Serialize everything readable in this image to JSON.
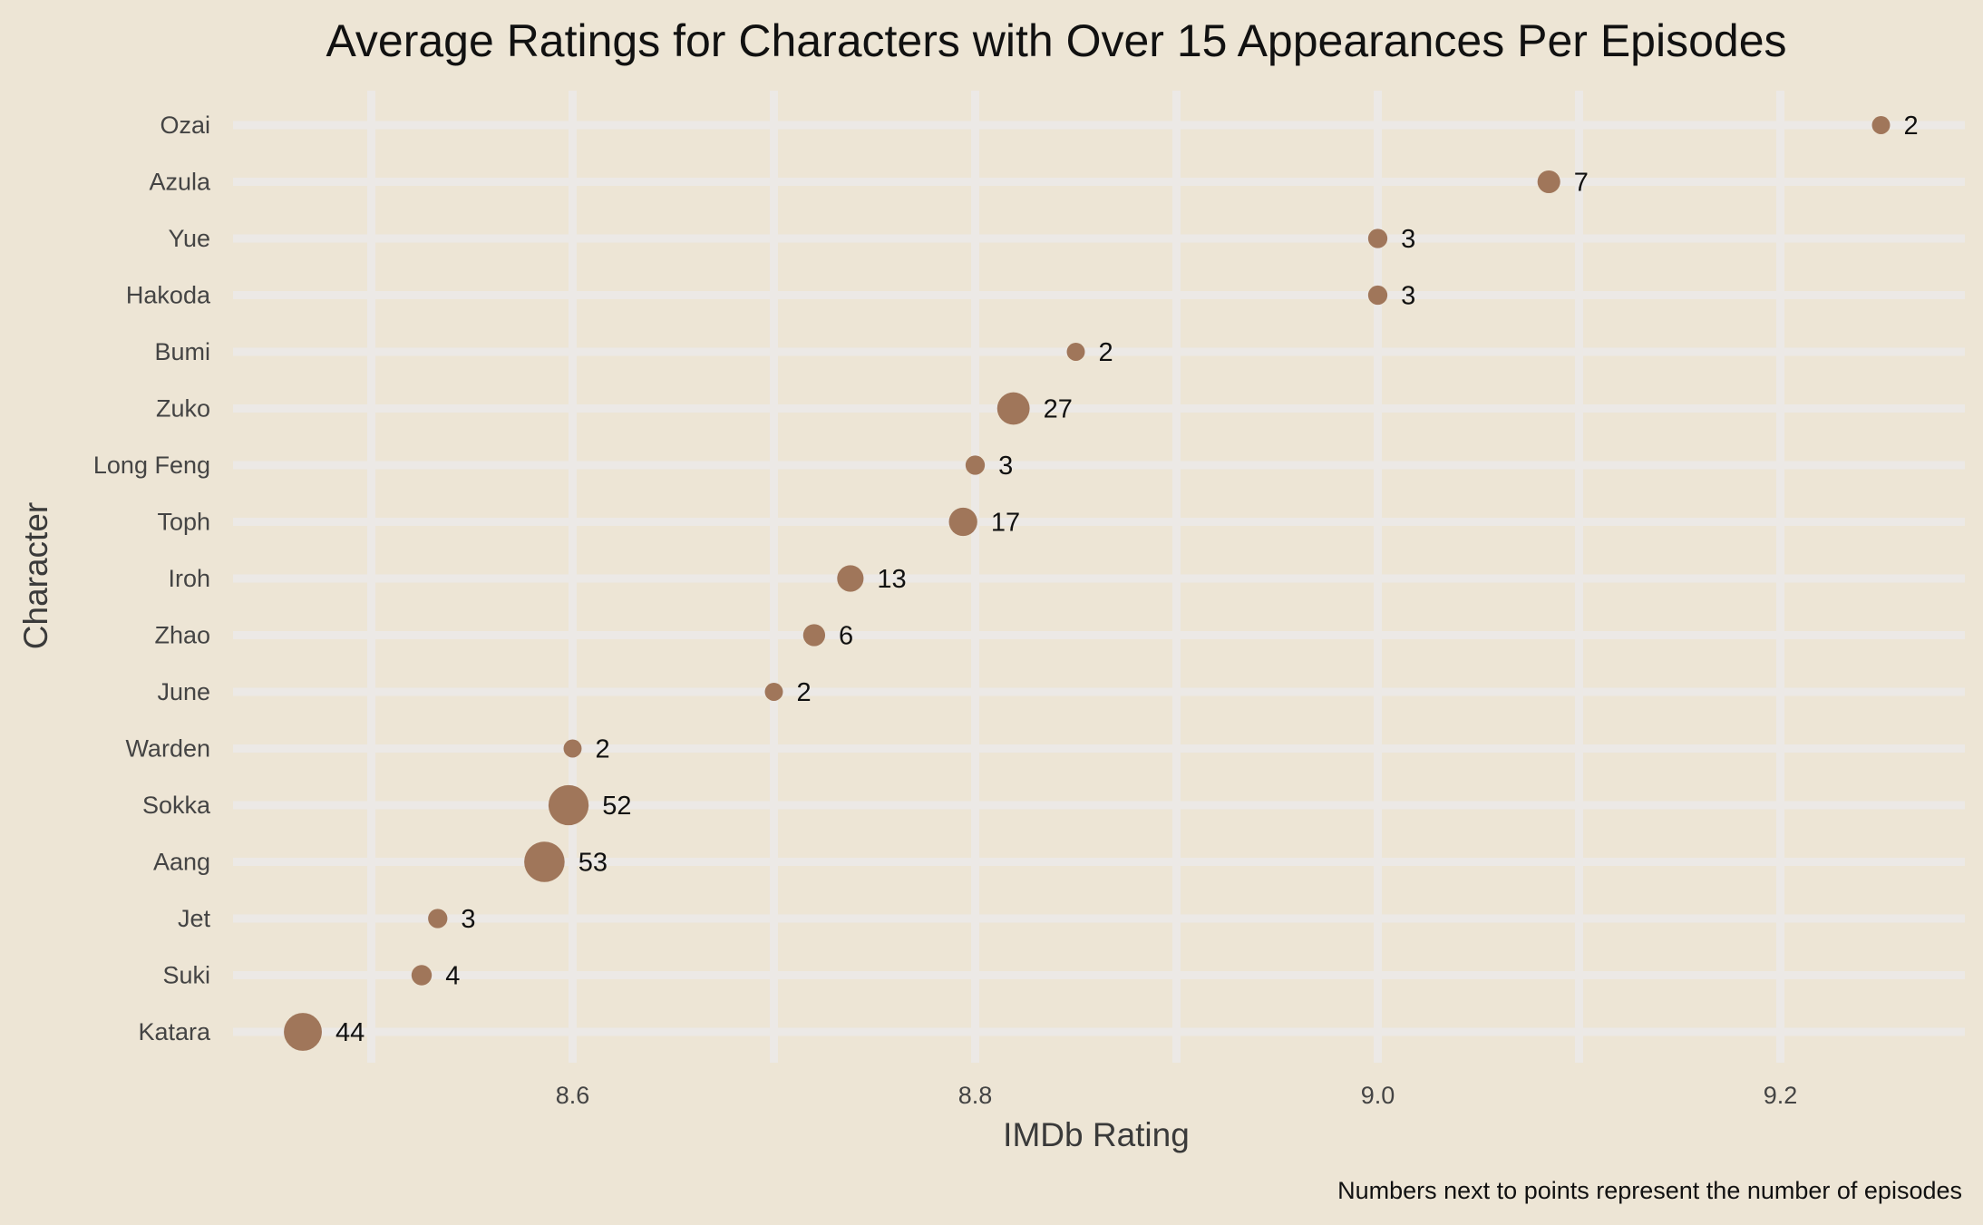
{
  "chart_data": {
    "type": "scatter",
    "title": "Average Ratings for Characters with Over 15 Appearances Per Episodes",
    "xlabel": "IMDb Rating",
    "ylabel": "Character",
    "caption": "Numbers next to points represent the number of episodes",
    "xlim": [
      8.43,
      9.29
    ],
    "x_ticks": [
      8.6,
      8.8,
      9.0,
      9.2
    ],
    "x_tick_labels": [
      "8.6",
      "8.8",
      "9.0",
      "9.2"
    ],
    "grid": true,
    "legend": "none",
    "colors": {
      "point": "#a0765a",
      "background": "#ede5d5",
      "grid": "#ece9e6"
    },
    "points": [
      {
        "character": "Ozai",
        "rating": 9.25,
        "episodes": 2
      },
      {
        "character": "Azula",
        "rating": 9.085,
        "episodes": 7
      },
      {
        "character": "Yue",
        "rating": 9.0,
        "episodes": 3
      },
      {
        "character": "Hakoda",
        "rating": 9.0,
        "episodes": 3
      },
      {
        "character": "Bumi",
        "rating": 8.85,
        "episodes": 2
      },
      {
        "character": "Zuko",
        "rating": 8.819,
        "episodes": 27
      },
      {
        "character": "Long Feng",
        "rating": 8.8,
        "episodes": 3
      },
      {
        "character": "Toph",
        "rating": 8.794,
        "episodes": 17
      },
      {
        "character": "Iroh",
        "rating": 8.738,
        "episodes": 13
      },
      {
        "character": "Zhao",
        "rating": 8.72,
        "episodes": 6
      },
      {
        "character": "June",
        "rating": 8.7,
        "episodes": 2
      },
      {
        "character": "Warden",
        "rating": 8.6,
        "episodes": 2
      },
      {
        "character": "Sokka",
        "rating": 8.598,
        "episodes": 52
      },
      {
        "character": "Aang",
        "rating": 8.586,
        "episodes": 53
      },
      {
        "character": "Jet",
        "rating": 8.533,
        "episodes": 3
      },
      {
        "character": "Suki",
        "rating": 8.525,
        "episodes": 4
      },
      {
        "character": "Katara",
        "rating": 8.466,
        "episodes": 44
      }
    ]
  }
}
